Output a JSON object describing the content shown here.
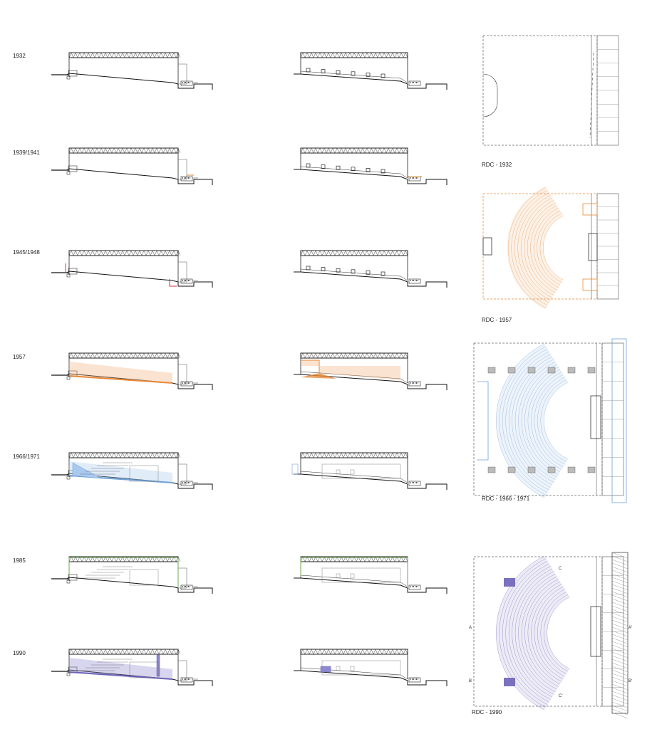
{
  "rows": [
    {
      "year": "1932",
      "accent": "#000000",
      "fill": "none"
    },
    {
      "year": "1939/1941",
      "accent": "#d08a30",
      "fill": "none"
    },
    {
      "year": "1945/1948",
      "accent": "#d0304a",
      "fill": "none"
    },
    {
      "year": "1957",
      "accent": "#e8893a",
      "fill": "#f2b07a"
    },
    {
      "year": "1966/1971",
      "accent": "#6fa0d8",
      "fill": "#a9c9ee"
    },
    {
      "year": "1985",
      "accent": "#6aa84f",
      "fill": "none"
    },
    {
      "year": "1990",
      "accent": "#6b63b8",
      "fill": "#8e88cf"
    }
  ],
  "plans": [
    {
      "caption": "RDC - 1932",
      "stroke": "#666666"
    },
    {
      "caption": "RDC - 1957",
      "stroke": "#e8893a"
    },
    {
      "caption": "RDC - 1966 - 1971",
      "stroke": "#6fa0d8"
    },
    {
      "caption": "RDC - 1990",
      "stroke": "#6b63b8"
    }
  ],
  "plan_1990_marks": {
    "top": "C",
    "bottom": "C'",
    "left_a": "A",
    "left_b": "B",
    "right_a": "A'",
    "right_b": "B'"
  }
}
